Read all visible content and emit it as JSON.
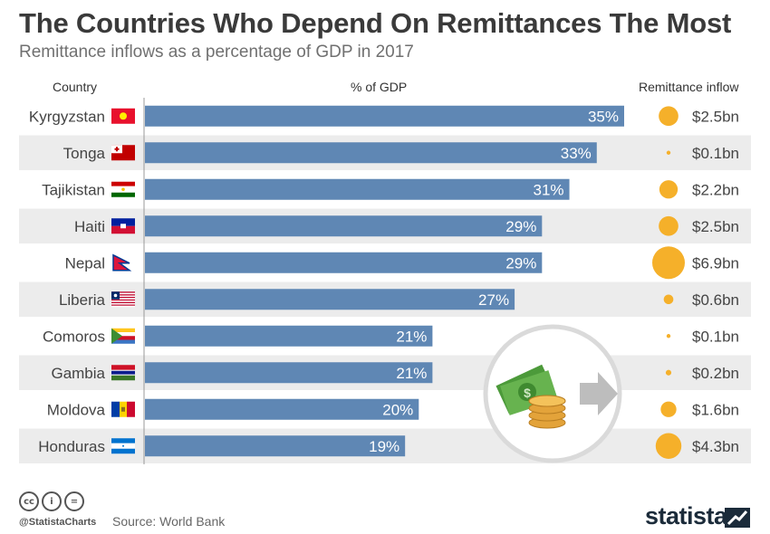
{
  "title": "The Countries Who Depend On Remittances The Most",
  "subtitle": "Remittance inflows as a percentage of GDP in 2017",
  "column_headers": {
    "country": "Country",
    "percent": "% of GDP",
    "inflow": "Remittance inflow"
  },
  "colors": {
    "bar": "#5f87b4",
    "stripe": "#ececec",
    "bubble": "#f5b02a",
    "title": "#3a3a3a",
    "brand": "#1b2b3a"
  },
  "chart_data": {
    "type": "bar",
    "orientation": "horizontal",
    "title": "The Countries Who Depend On Remittances The Most",
    "subtitle": "Remittance inflows as a percentage of GDP in 2017",
    "xlabel": "% of GDP",
    "ylabel": "Country",
    "categories": [
      "Kyrgyzstan",
      "Tonga",
      "Tajikistan",
      "Haiti",
      "Nepal",
      "Liberia",
      "Comoros",
      "Gambia",
      "Moldova",
      "Honduras"
    ],
    "values": [
      35,
      33,
      31,
      29,
      29,
      27,
      21,
      21,
      20,
      19
    ],
    "value_labels": [
      "35%",
      "33%",
      "31%",
      "29%",
      "29%",
      "27%",
      "21%",
      "21%",
      "20%",
      "19%"
    ],
    "xlim": [
      0,
      35
    ],
    "grid": false,
    "remittance_inflow_bn_usd": [
      2.5,
      0.1,
      2.2,
      2.5,
      6.9,
      0.6,
      0.1,
      0.2,
      1.6,
      4.3
    ],
    "remittance_inflow_labels": [
      "$2.5bn",
      "$0.1bn",
      "$2.2bn",
      "$2.5bn",
      "$6.9bn",
      "$0.6bn",
      "$0.1bn",
      "$0.2bn",
      "$1.6bn",
      "$4.3bn"
    ]
  },
  "flags": [
    "kyrgyzstan-flag-icon",
    "tonga-flag-icon",
    "tajikistan-flag-icon",
    "haiti-flag-icon",
    "nepal-flag-icon",
    "liberia-flag-icon",
    "comoros-flag-icon",
    "gambia-flag-icon",
    "moldova-flag-icon",
    "honduras-flag-icon"
  ],
  "illustration": "money-transfer-icon",
  "footer": {
    "license_icons": [
      "cc-icon",
      "attribution-icon",
      "no-derivatives-icon"
    ],
    "license_glyphs": [
      "cc",
      "i",
      "="
    ],
    "handle": "@StatistaCharts",
    "source": "Source: World Bank",
    "brand": "statista"
  }
}
